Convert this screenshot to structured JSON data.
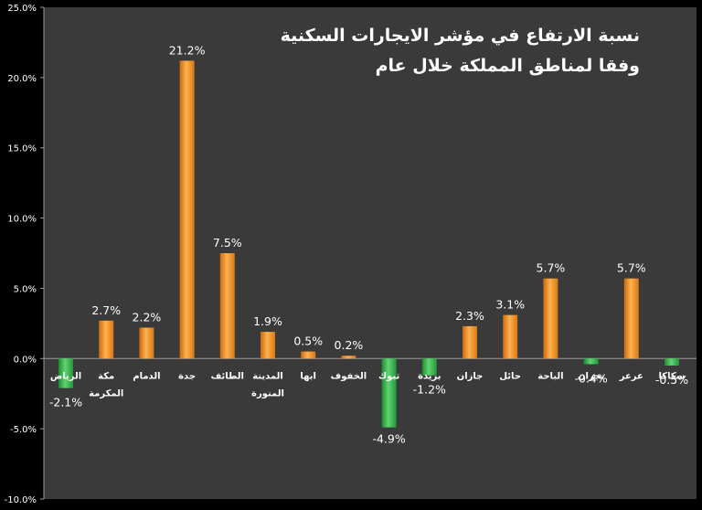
{
  "chart_data": {
    "type": "bar",
    "title_line1": "نسبة الارتفاع في مؤشر الايجارات السكنية",
    "title_line2": "وفقا لمناطق المملكة خلال عام",
    "xlabel": "",
    "ylabel": "",
    "ylim": [
      -10,
      25
    ],
    "yticks": [
      25,
      20,
      15,
      10,
      5,
      0,
      -5,
      -10
    ],
    "ytick_labels": [
      "25.0%",
      "20.0%",
      "15.0%",
      "10.0%",
      "5.0%",
      "0.0%",
      "-5.0%",
      "-10.0%"
    ],
    "grid": false,
    "colors": {
      "positive": "#f0922e",
      "negative": "#33b54a",
      "background": "#3a3a3a",
      "text": "#ffffff"
    },
    "categories": [
      "الرياض",
      "مكة المكرمة",
      "الدمام",
      "جدة",
      "الطائف",
      "المدينة المنورة",
      "ابها",
      "الخفوف",
      "تبوك",
      "بريدة",
      "جازان",
      "حائل",
      "الباحة",
      "نجران",
      "عرعر",
      "سكاكا"
    ],
    "values": [
      -2.1,
      2.7,
      2.2,
      21.2,
      7.5,
      1.9,
      0.5,
      0.2,
      -4.9,
      -1.2,
      2.3,
      3.1,
      5.7,
      -0.4,
      5.7,
      -0.5
    ],
    "data_labels": [
      "-2.1%",
      "2.7%",
      "2.2%",
      "21.2%",
      "7.5%",
      "1.9%",
      "0.5%",
      "0.2%",
      "-4.9%",
      "-1.2%",
      "2.3%",
      "3.1%",
      "5.7%",
      "-0.4%",
      "5.7%",
      "-0.5%"
    ]
  }
}
